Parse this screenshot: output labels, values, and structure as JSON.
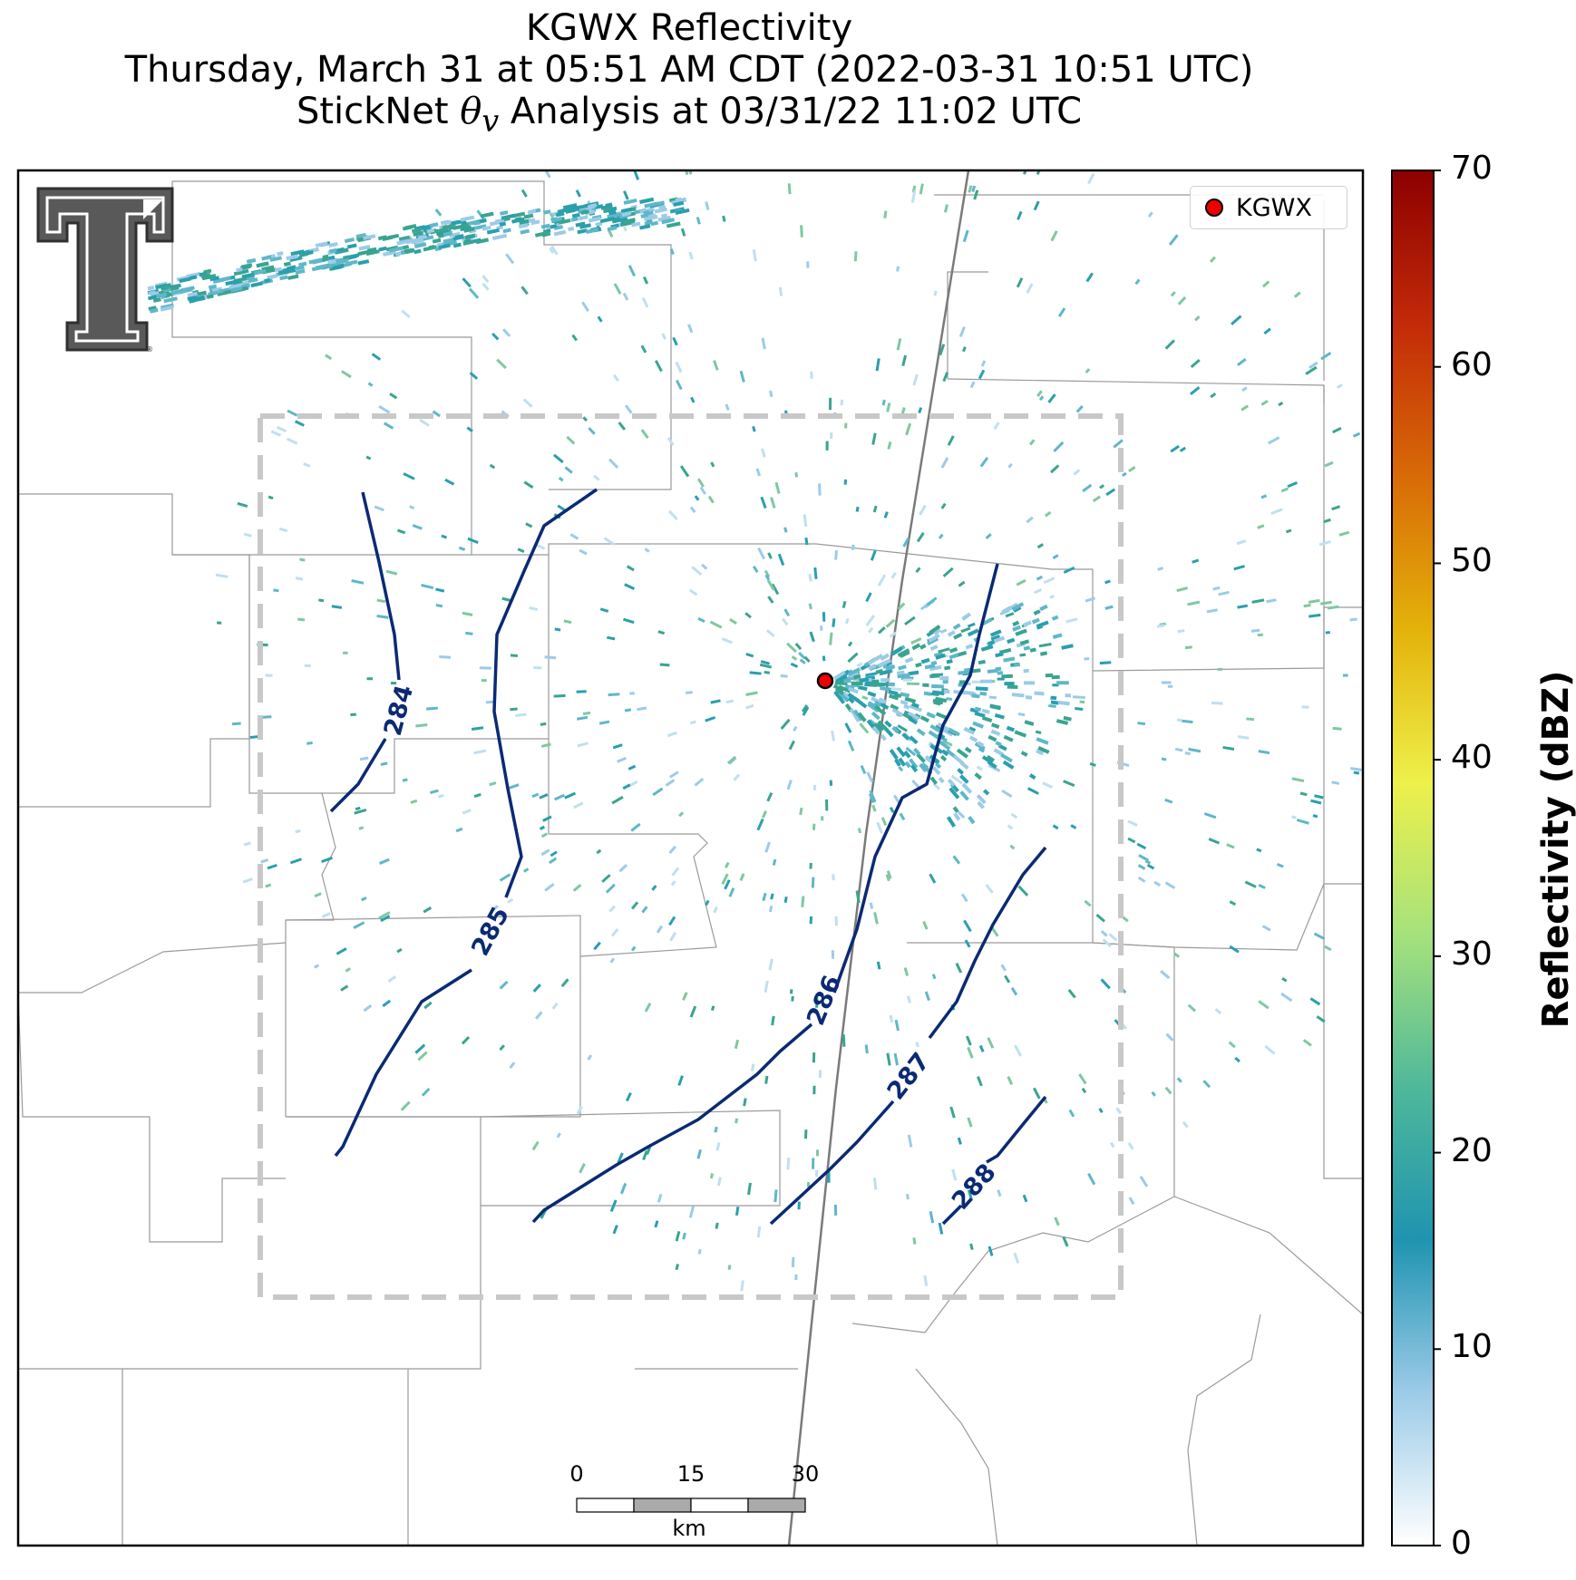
{
  "title": {
    "line1": "KGWX Reflectivity",
    "line2": "Thursday, March 31 at 05:51 AM CDT (2022-03-31 10:51 UTC)",
    "line3_prefix": "StickNet ",
    "line3_symbol": "θ",
    "line3_subscript": "v",
    "line3_suffix": " Analysis at 03/31/22 11:02 UTC"
  },
  "legend": {
    "label": "KGWX",
    "marker_color": "#ee0000"
  },
  "colorbar": {
    "title": "Reflectivity (dBZ)",
    "ticks": [
      "0",
      "10",
      "20",
      "30",
      "40",
      "50",
      "60",
      "70"
    ],
    "range": [
      0,
      70
    ],
    "colors": [
      "#ffffff",
      "#9ccbe8",
      "#1f94b0",
      "#4fb89a",
      "#a6e27c",
      "#eef04a",
      "#e3b20a",
      "#d86a07",
      "#c32a08",
      "#8c0000"
    ]
  },
  "contours": {
    "color": "#0b2a73",
    "labels": [
      "284",
      "285",
      "286",
      "287",
      "288"
    ]
  },
  "scale_bar": {
    "ticks": [
      "0",
      "15",
      "30"
    ],
    "unit": "km"
  },
  "colors": {
    "county_lines": "#9a9a9a",
    "state_line": "#7a7a7a",
    "analysis_box": "#c8c8c8",
    "radar_echo": "#2a9fae"
  }
}
